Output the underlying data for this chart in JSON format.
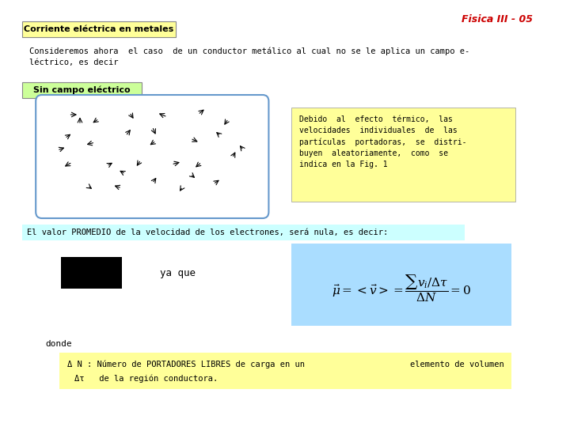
{
  "title": "Fisica III - 05",
  "title_color": "#CC0000",
  "bg_color": "#FFFFFF",
  "heading1": "Corriente eléctrica en metales",
  "heading1_bg": "#FFFF99",
  "heading1_border": "#888888",
  "body_text1": "Consideremos ahora  el caso  de un conductor metálico al cual no se le aplica un campo e-\nléctrico, es decir",
  "heading2": "Sin campo eléctrico",
  "heading2_bg": "#CCFF99",
  "heading2_border": "#888888",
  "desc_text": "Debido  al  efecto  térmico,  las\nvelocidades  individuales  de  las\npartículas  portadoras,  se  distri-\nbuyen  aleatoriamente,  como  se\nindica en la Fig. 1",
  "desc_bg": "#FFFF99",
  "mid_text": "El valor PROMEDIO de la velocidad de los electrones, será nula, es decir:",
  "mid_text_bg": "#CCFFFF",
  "formula_bg": "#AADDFF",
  "black_rect": "#000000",
  "ya_que": "ya que",
  "donde": "donde",
  "bottom_text1": "Δ N : Número de PORTADORES LIBRES de carga en un",
  "bottom_text2": "elemento de volumen",
  "bottom_text3": "Δτ   de la región conductora.",
  "bottom_bg": "#FFFF99"
}
